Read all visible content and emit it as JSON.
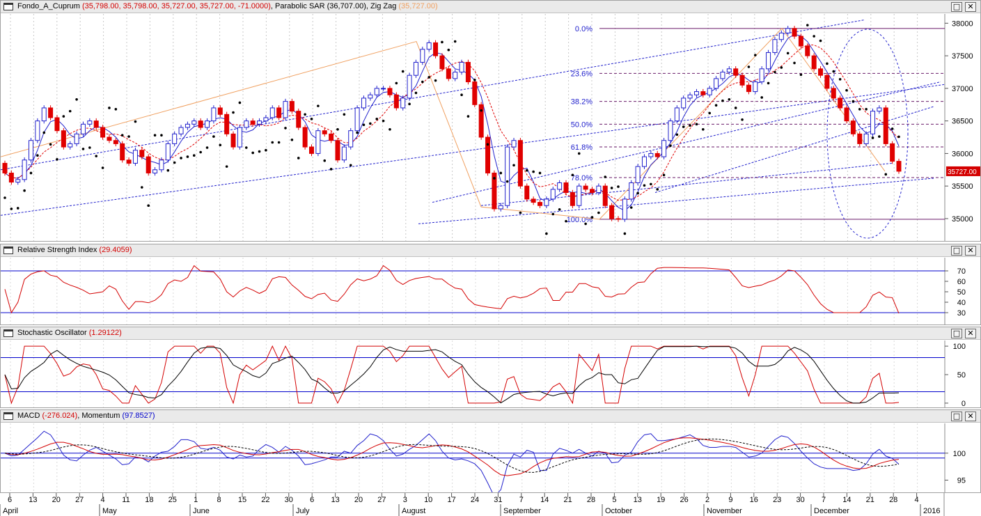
{
  "panels": {
    "main": {
      "name": "Fondo_A_Cuprum",
      "ohlc": "(35,798.00, 35,798.00, 35,727.00, 35,727.00, -71.0000)",
      "ind1": "Parabolic SAR",
      "ind1_val": "(36,707.00)",
      "ind2": "Zig Zag",
      "ind2_val": "(35,727.00)",
      "last_price": "35727.00"
    },
    "rsi": {
      "name": "Relative Strength Index",
      "val": "(29.4059)"
    },
    "stoch": {
      "name": "Stochastic Oscillator",
      "val": "(1.29122)"
    },
    "macd": {
      "name": "MACD",
      "val": "(-276.024)",
      "name2": "Momentum",
      "val2": "(97.8527)"
    }
  },
  "window_buttons": {
    "maximize": "□",
    "close": "✕"
  },
  "colors": {
    "up": "#2020cc",
    "down": "#e00000",
    "sar": "#000000",
    "fib": "#6a1a6a",
    "channel": "#2020cc",
    "zigzag": "#f0a060",
    "level": "#0000cc"
  },
  "chart_data": [
    {
      "type": "candlestick",
      "title": "Fondo_A_Cuprum",
      "ylim": [
        34700,
        38100
      ],
      "y_ticks": [
        35000,
        35500,
        36000,
        36500,
        37000,
        37500,
        38000
      ],
      "fibonacci": [
        {
          "label": "0.0%",
          "value": 37920
        },
        {
          "label": "23.6%",
          "value": 37230
        },
        {
          "label": "38.2%",
          "value": 36800
        },
        {
          "label": "50.0%",
          "value": 36450
        },
        {
          "label": "61.8%",
          "value": 36100
        },
        {
          "label": "78.0%",
          "value": 35630
        },
        {
          "label": "100.0%",
          "value": 34990
        }
      ],
      "last_price": 35727,
      "series_close": [
        35700,
        35560,
        35600,
        35900,
        36200,
        36500,
        36700,
        36550,
        36350,
        36100,
        36150,
        36300,
        36450,
        36500,
        36400,
        36250,
        36200,
        36150,
        35900,
        35850,
        36050,
        35950,
        35700,
        35750,
        35900,
        36150,
        36300,
        36400,
        36450,
        36500,
        36400,
        36500,
        36700,
        36600,
        36300,
        36100,
        36400,
        36500,
        36450,
        36500,
        36550,
        36700,
        36550,
        36800,
        36650,
        36400,
        36100,
        36000,
        36350,
        36300,
        36200,
        35900,
        36100,
        36350,
        36700,
        36850,
        36900,
        37000,
        37000,
        36900,
        36700,
        36850,
        37200,
        37400,
        37600,
        37700,
        37500,
        37300,
        37150,
        37250,
        37400,
        37100,
        36750,
        36250,
        35700,
        35150,
        35200,
        36100,
        36200,
        35500,
        35300,
        35250,
        35200,
        35300,
        35450,
        35550,
        35400,
        35200,
        35500,
        35450,
        35400,
        35500,
        35200,
        35000,
        34990,
        35300,
        35550,
        35800,
        35950,
        36000,
        35950,
        36200,
        36500,
        36700,
        36850,
        36900,
        36950,
        36900,
        37000,
        37150,
        37250,
        37300,
        37200,
        37050,
        36950,
        37100,
        37300,
        37550,
        37750,
        37850,
        37920,
        37800,
        37650,
        37500,
        37300,
        37200,
        37000,
        36850,
        36700,
        36500,
        36300,
        36150,
        36300,
        36650,
        36700,
        36150,
        35880,
        35727
      ],
      "dates_ticks": [
        "6",
        "13",
        "20",
        "27",
        "4",
        "11",
        "18",
        "25",
        "1",
        "8",
        "15",
        "22",
        "30",
        "6",
        "13",
        "20",
        "27",
        "3",
        "10",
        "17",
        "24",
        "31",
        "7",
        "14",
        "21",
        "28",
        "5",
        "13",
        "19",
        "26",
        "2",
        "9",
        "16",
        "23",
        "30",
        "7",
        "14",
        "21",
        "28",
        "4"
      ],
      "months": [
        "April",
        "May",
        "June",
        "July",
        "August",
        "September",
        "October",
        "November",
        "December",
        "2016"
      ]
    },
    {
      "type": "line",
      "title": "Relative Strength Index",
      "ylim": [
        20,
        80
      ],
      "y_ticks": [
        30,
        40,
        50,
        60,
        70
      ],
      "levels": [
        70,
        30
      ],
      "series": [
        {
          "name": "Relative Strength Index",
          "last": 29.4059
        }
      ]
    },
    {
      "type": "line",
      "title": "Stochastic Oscillator",
      "ylim": [
        -5,
        105
      ],
      "y_ticks": [
        0,
        50,
        100
      ],
      "levels": [
        80,
        20
      ],
      "series": [
        {
          "name": "Stochastic Oscillator",
          "last": 1.29122
        }
      ]
    },
    {
      "type": "line",
      "title": "MACD, Momentum",
      "ylim": [
        93,
        105
      ],
      "y_ticks": [
        95,
        100
      ],
      "series": [
        {
          "name": "MACD",
          "last": -276.024
        },
        {
          "name": "Momentum",
          "last": 97.8527
        }
      ]
    }
  ]
}
